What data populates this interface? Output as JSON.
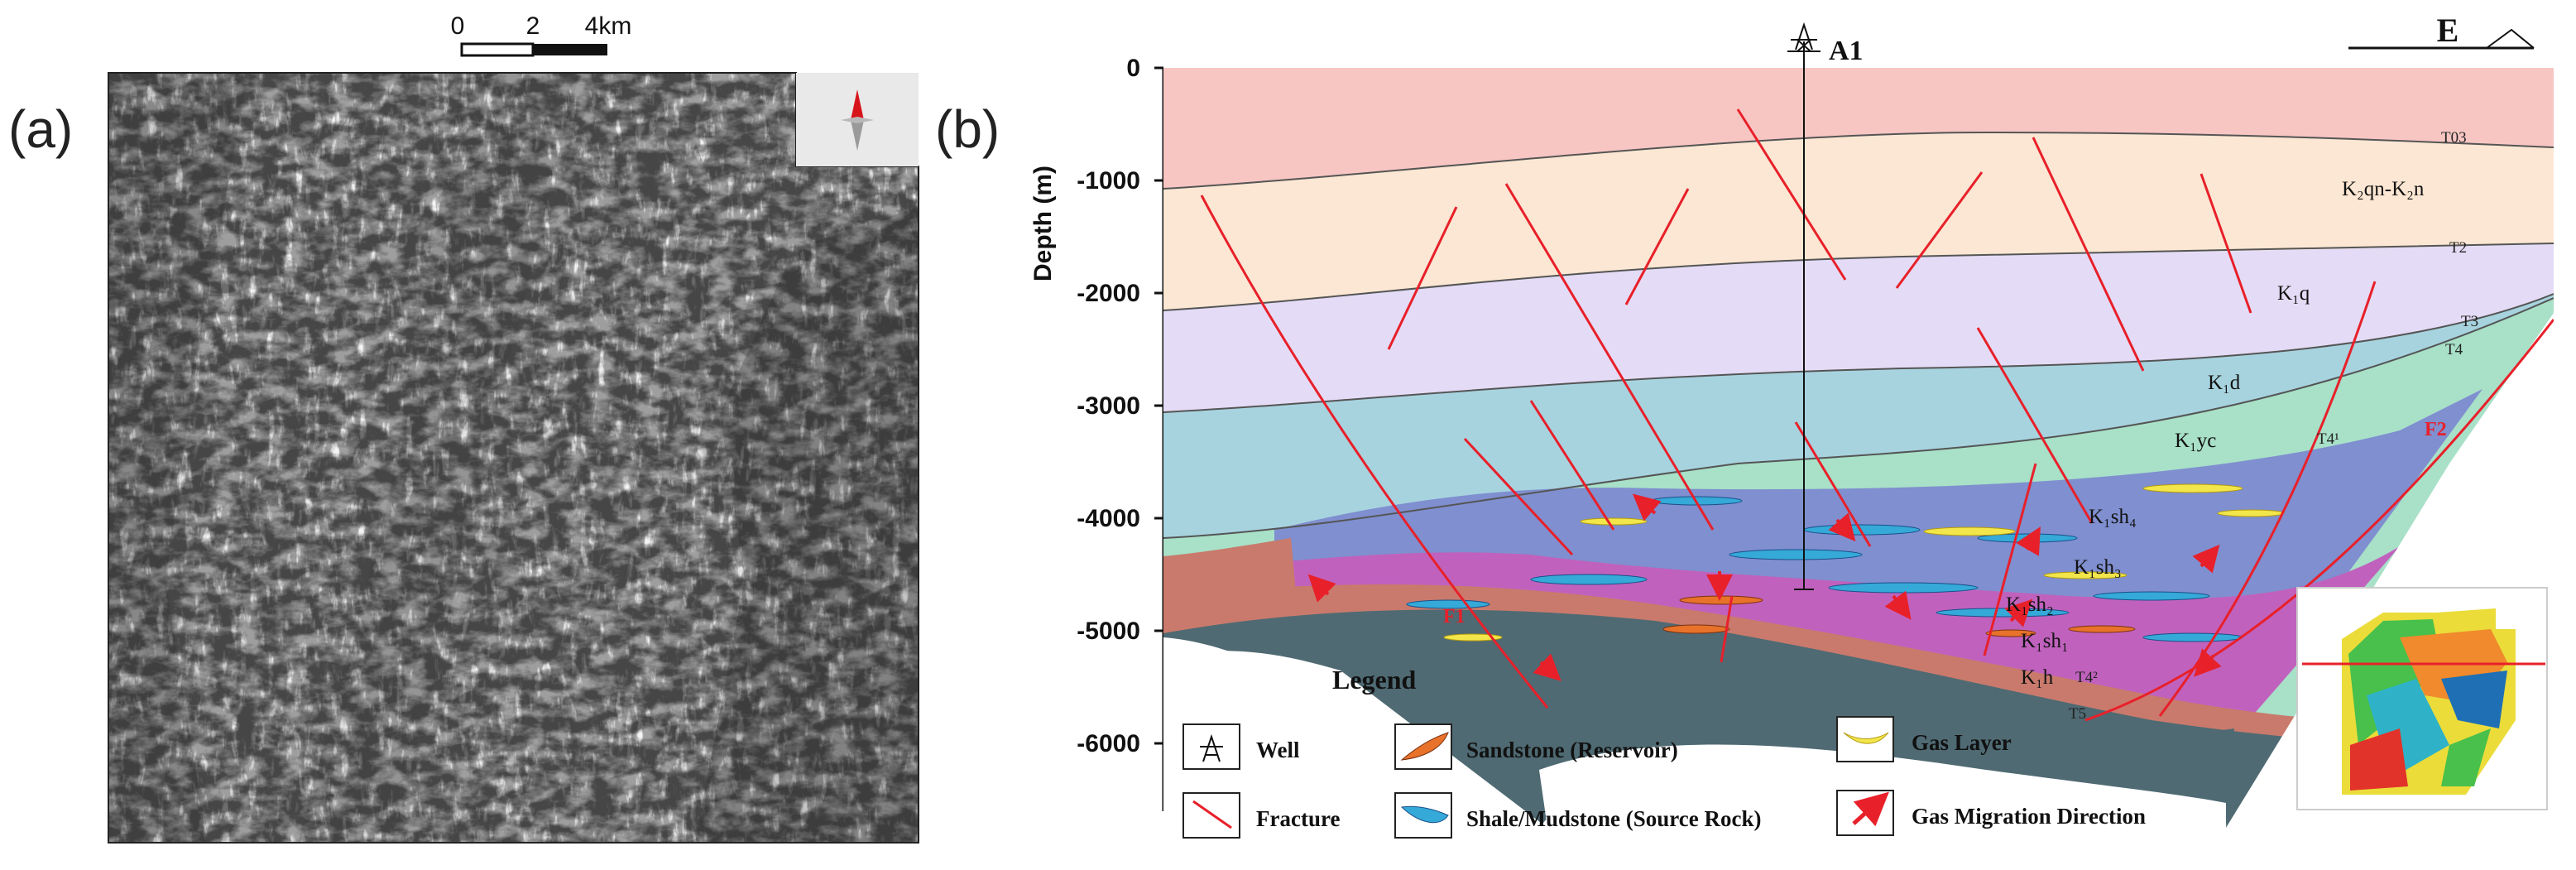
{
  "panel_a": {
    "label": "(a)",
    "scale_bar": {
      "ticks": [
        "0",
        "2",
        "4km"
      ]
    }
  },
  "panel_b": {
    "label": "(b)",
    "direction": "E",
    "well_name": "A1",
    "axis": {
      "title": "Depth (m)",
      "ticks": [
        "0",
        "-1000",
        "-2000",
        "-3000",
        "-4000",
        "-5000",
        "-6000"
      ]
    },
    "layers": [
      "K₂qn-K₂n",
      "K₁q",
      "K₁d",
      "K₁yc",
      "K₁sh₄",
      "K₁sh₃",
      "K₁sh₂",
      "K₁sh₁",
      "K₁h"
    ],
    "horizons": [
      "T03",
      "T2",
      "T3",
      "T4",
      "T4¹",
      "T4²",
      "T5"
    ],
    "faults": [
      "F1",
      "F2"
    ],
    "legend": {
      "title": "Legend",
      "items": [
        "Well",
        "Sandstone (Reservoir)",
        "Gas Layer",
        "Fracture",
        "Shale/Mudstone (Source Rock)",
        "Gas Migration Direction"
      ]
    },
    "colors": {
      "layer_top": "#f7c6c3",
      "layer_2": "#fbe7d3",
      "layer_3": "#e4dcf6",
      "layer_4": "#a7d3df",
      "layer_5": "#a8e0c8",
      "layer_6": "#7f8fcf",
      "layer_7": "#c062bd",
      "layer_8": "#c97a6c",
      "layer_9": "#4f6a73",
      "fault": "#e8202a"
    }
  }
}
